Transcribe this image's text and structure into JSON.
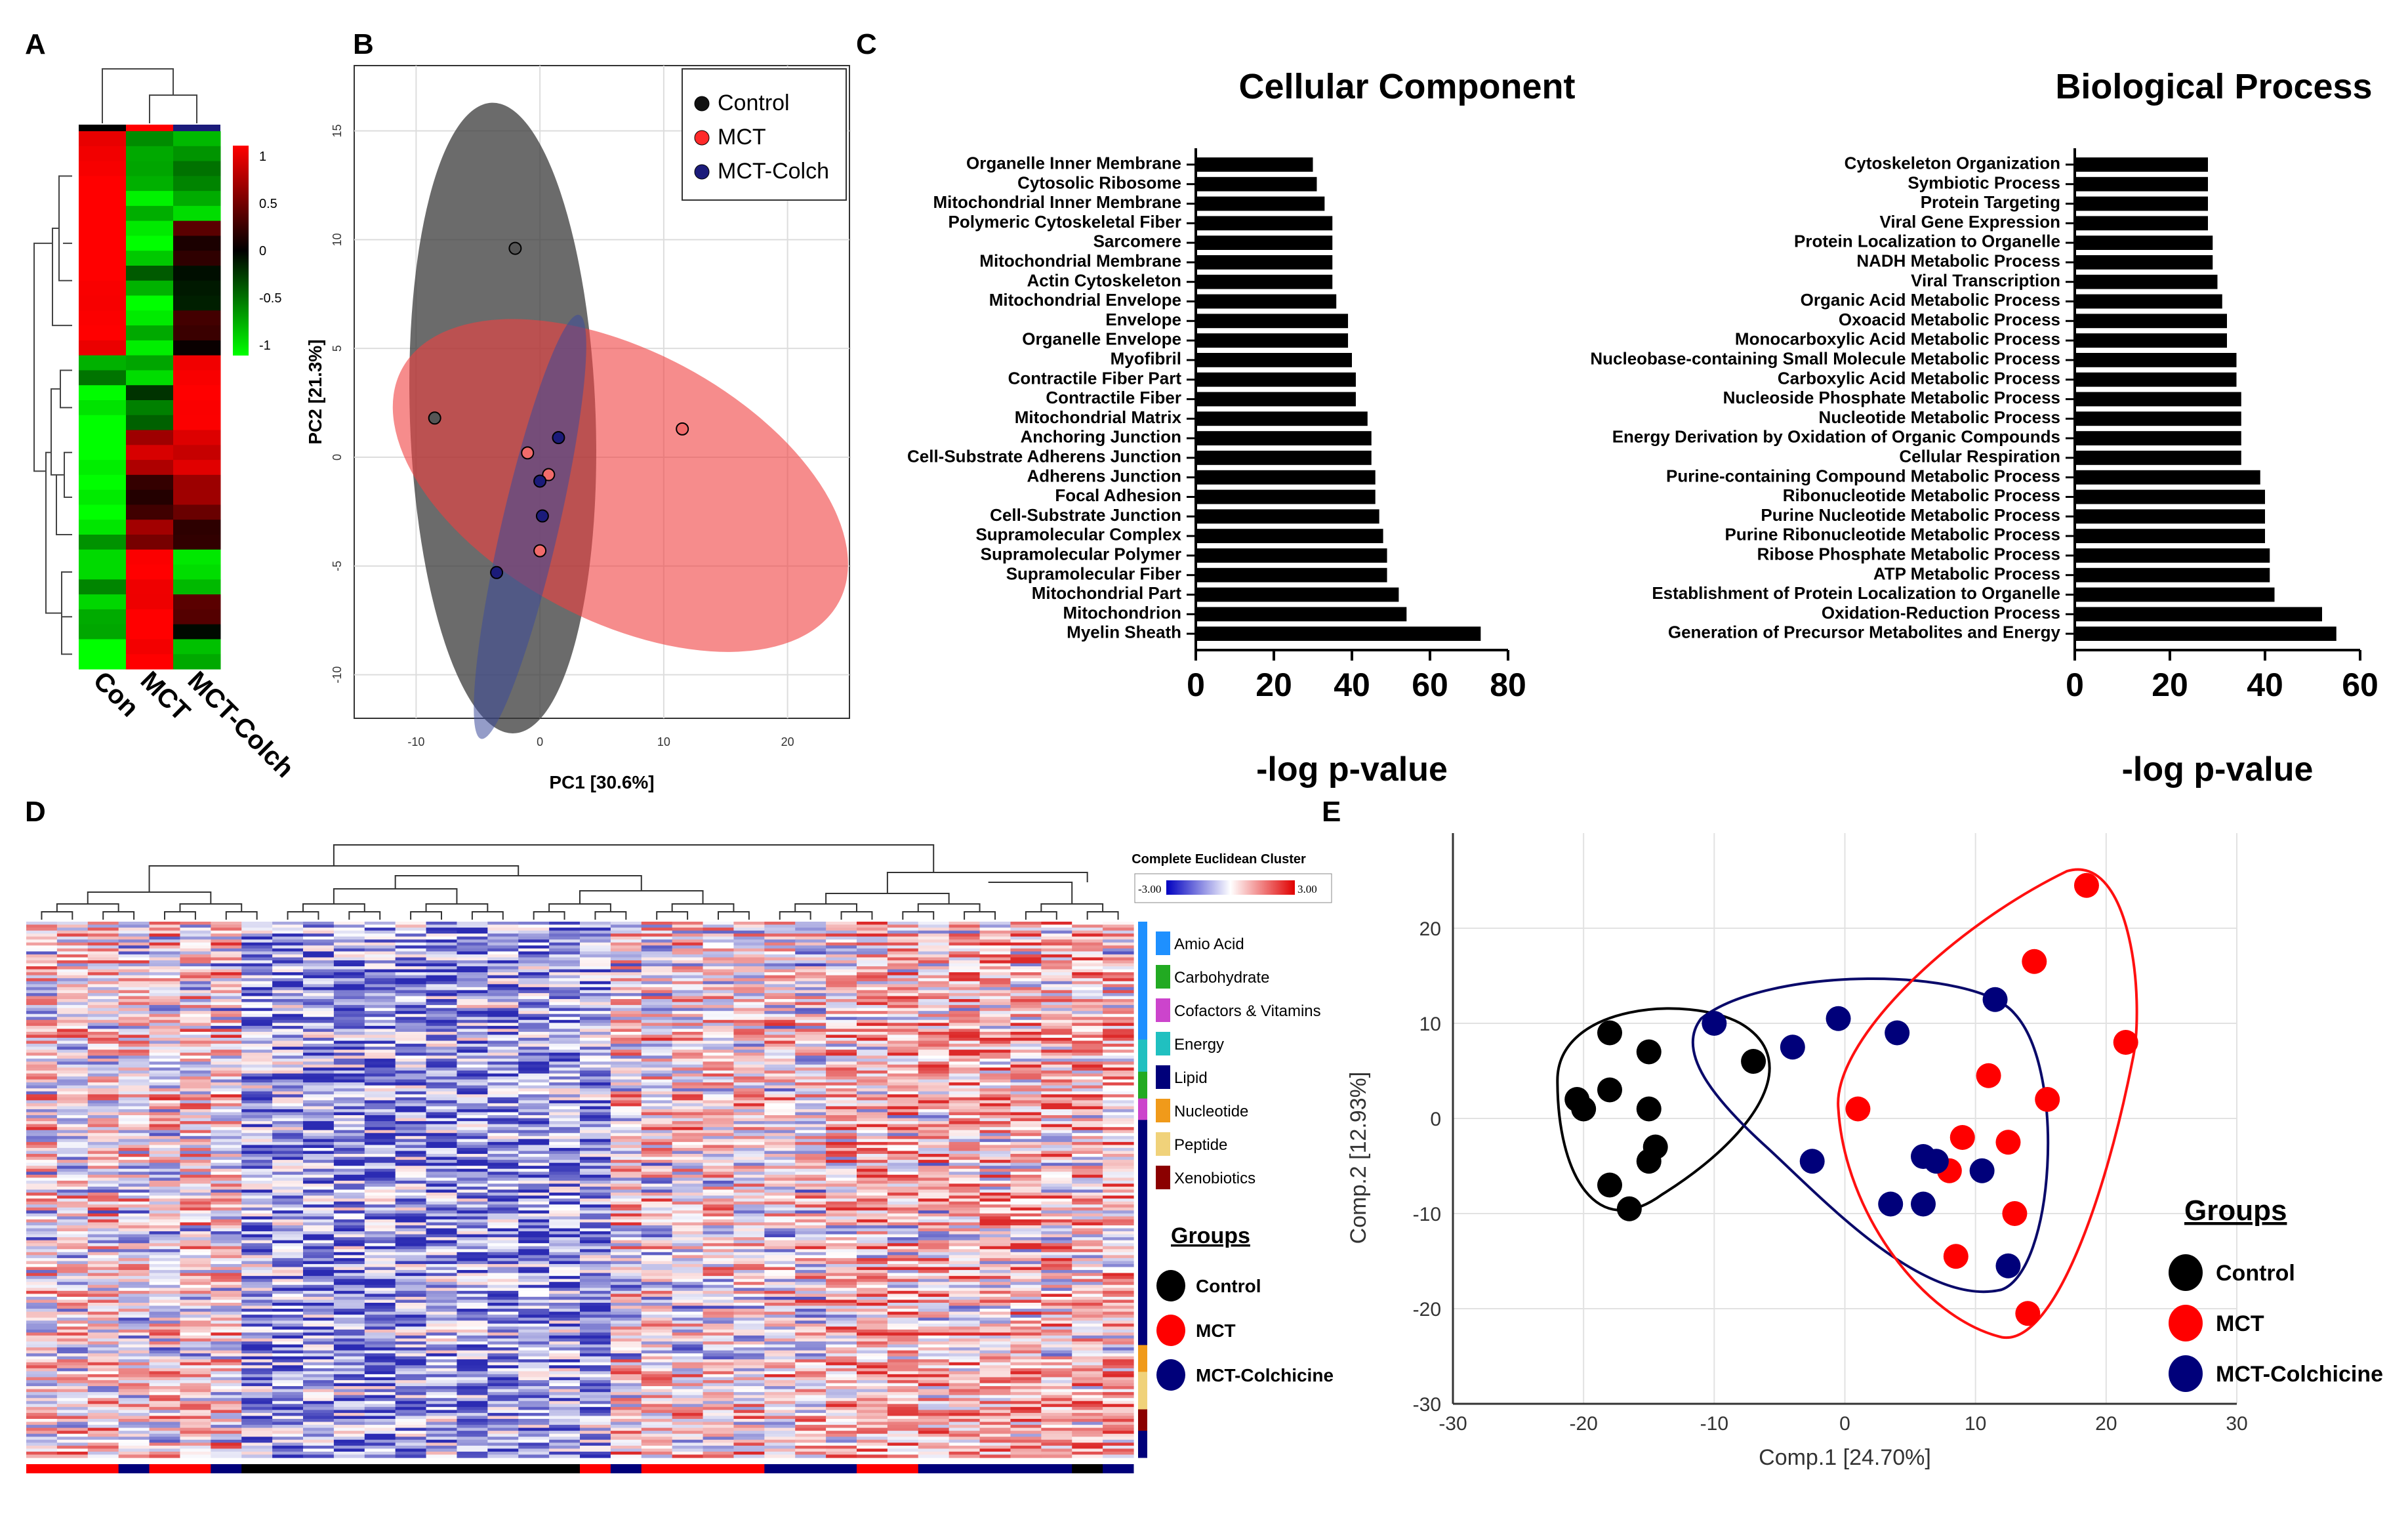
{
  "panel_labels": [
    "A",
    "B",
    "C",
    "D",
    "E"
  ],
  "colors": {
    "red": "#ff0000",
    "green": "#00ff00",
    "black": "#000000",
    "navy": "#1b1b7a",
    "control_fill": "#555555",
    "mct_fill": "#f26b6b",
    "heat_blue": "#2f2fb0",
    "heat_red": "#e03030"
  },
  "chart_data": [
    {
      "id": "A",
      "type": "heatmap",
      "columns": [
        "Con",
        "MCT",
        "MCT-Colch"
      ],
      "column_colors": [
        "#000000",
        "#ff0000",
        "#1b1b7a"
      ],
      "colorbar": {
        "ticks": [
          "1",
          "0.5",
          "0",
          "-0.5",
          "-1"
        ],
        "range": [
          -1,
          1
        ]
      },
      "blocks": [
        {
          "rows": 6,
          "values": [
            1,
            -0.8,
            -0.6
          ]
        },
        {
          "rows": 3,
          "values": [
            1,
            -0.9,
            0.1
          ]
        },
        {
          "rows": 2,
          "values": [
            1,
            -0.6,
            -0.3
          ]
        },
        {
          "rows": 4,
          "values": [
            1,
            -0.8,
            0.0
          ]
        },
        {
          "rows": 2,
          "values": [
            -0.7,
            -0.6,
            1
          ]
        },
        {
          "rows": 3,
          "values": [
            -0.9,
            -0.3,
            1
          ]
        },
        {
          "rows": 3,
          "values": [
            -1,
            0.6,
            0.8
          ]
        },
        {
          "rows": 3,
          "values": [
            -1,
            0.2,
            0.5
          ]
        },
        {
          "rows": 2,
          "values": [
            -0.8,
            0.7,
            0.0
          ]
        },
        {
          "rows": 3,
          "values": [
            -0.6,
            1,
            -0.7
          ]
        },
        {
          "rows": 3,
          "values": [
            -0.9,
            1,
            0.1
          ]
        },
        {
          "rows": 2,
          "values": [
            -1,
            1,
            -0.5
          ]
        }
      ]
    },
    {
      "id": "B",
      "type": "scatter",
      "xlabel": "PC1 [30.6%]",
      "ylabel": "PC2 [21.3%]",
      "xlim": [
        -15,
        25
      ],
      "ylim": [
        -12,
        18
      ],
      "xticks": [
        -10,
        0,
        10,
        20
      ],
      "yticks": [
        -10,
        -5,
        0,
        5,
        10,
        15
      ],
      "legend": [
        "Control",
        "MCT",
        "MCT-Colch"
      ],
      "series": [
        {
          "name": "Control",
          "color": "#555555",
          "x": [
            -2,
            -8.5
          ],
          "y": [
            9.6,
            1.8
          ]
        },
        {
          "name": "MCT",
          "color": "#f26b6b",
          "x": [
            11.5,
            -1,
            0.7,
            0
          ],
          "y": [
            1.3,
            0.2,
            -0.8,
            -4.3
          ]
        },
        {
          "name": "MCT-Colch",
          "color": "#1b1b7a",
          "x": [
            1.5,
            0,
            0.2,
            -3.5
          ],
          "y": [
            0.9,
            -1.1,
            -2.7,
            -5.3
          ]
        }
      ],
      "ellipses": [
        {
          "group": "Control",
          "cx": -3,
          "cy": 1.8,
          "rx": 7.5,
          "ry": 14.5,
          "angle_deg": -2
        },
        {
          "group": "MCT",
          "cx": 6.5,
          "cy": -1.3,
          "rx": 20,
          "ry": 6.2,
          "angle_deg": 28
        },
        {
          "group": "MCT-Colch",
          "cx": -0.8,
          "cy": -3.2,
          "rx": 2.3,
          "ry": 10,
          "angle_deg": 13
        }
      ]
    },
    {
      "id": "C1",
      "type": "bar",
      "orientation": "horizontal",
      "title": "Cellular  Component",
      "xlabel": "-log p-value",
      "xlim": [
        0,
        80
      ],
      "xticks": [
        "0",
        "20",
        "40",
        "60",
        "80"
      ],
      "categories": [
        "Organelle Inner Membrane",
        "Cytosolic Ribosome",
        "Mitochondrial Inner Membrane",
        "Polymeric Cytoskeletal Fiber",
        "Sarcomere",
        "Mitochondrial Membrane",
        "Actin Cytoskeleton",
        "Mitochondrial Envelope",
        "Envelope",
        "Organelle Envelope",
        "Myofibril",
        "Contractile Fiber Part",
        "Contractile Fiber",
        "Mitochondrial Matrix",
        "Anchoring Junction",
        "Cell-Substrate Adherens Junction",
        "Adherens Junction",
        "Focal Adhesion",
        "Cell-Substrate Junction",
        "Supramolecular Complex",
        "Supramolecular Polymer",
        "Supramolecular Fiber",
        "Mitochondrial Part",
        "Mitochondrion",
        "Myelin Sheath"
      ],
      "values": [
        30,
        31,
        33,
        35,
        35,
        35,
        35,
        36,
        39,
        39,
        40,
        41,
        41,
        44,
        45,
        45,
        46,
        46,
        47,
        48,
        49,
        49,
        52,
        54,
        73
      ]
    },
    {
      "id": "C2",
      "type": "bar",
      "orientation": "horizontal",
      "title": "Biological Process",
      "xlabel": "-log p-value",
      "xlim": [
        0,
        60
      ],
      "xticks": [
        "0",
        "20",
        "40",
        "60"
      ],
      "categories": [
        "Cytoskeleton Organization",
        "Symbiotic Process",
        "Protein Targeting",
        "Viral Gene Expression",
        "Protein Localization to Organelle",
        "NADH Metabolic Process",
        "Viral Transcription",
        "Organic Acid Metabolic Process",
        "Oxoacid Metabolic Process",
        "Monocarboxylic Acid Metabolic Process",
        "Nucleobase-containing Small Molecule Metabolic Process",
        "Carboxylic Acid Metabolic Process",
        "Nucleoside Phosphate Metabolic Process",
        "Nucleotide Metabolic Process",
        "Energy Derivation by Oxidation of Organic Compounds",
        "Cellular Respiration",
        "Purine-containing Compound Metabolic Process",
        "Ribonucleotide Metabolic Process",
        "Purine Nucleotide Metabolic Process",
        "Purine Ribonucleotide Metabolic Process",
        "Ribose Phosphate Metabolic Process",
        "ATP Metabolic Process",
        "Establishment of Protein Localization to Organelle",
        "Oxidation-Reduction Process",
        "Generation of Precursor Metabolites and Energy"
      ],
      "values": [
        28,
        28,
        28,
        28,
        29,
        29,
        30,
        31,
        32,
        32,
        34,
        34,
        35,
        35,
        35,
        35,
        39,
        40,
        40,
        40,
        41,
        41,
        42,
        52,
        55
      ]
    },
    {
      "id": "D",
      "type": "heatmap",
      "colorbar_title": "Complete Euclidean Cluster",
      "colorbar_ticks": [
        "-3.00",
        "3.00"
      ],
      "columns": 36,
      "rows": 180,
      "categories": [
        "Amio Acid",
        "Carbohydrate",
        "Cofactors & Vitamins",
        "Energy",
        "Lipid",
        "Nucleotide",
        "Peptide",
        "Xenobiotics"
      ],
      "category_colors": [
        "#1e90ff",
        "#22aa22",
        "#cc44cc",
        "#20c0c0",
        "#00007a",
        "#f09a1a",
        "#f0d27a",
        "#8b0000"
      ],
      "groups_title": "Groups",
      "groups": [
        "Control",
        "MCT",
        "MCT-Colchicine"
      ],
      "group_colors": [
        "#000000",
        "#ff0000",
        "#00007a"
      ]
    },
    {
      "id": "E",
      "type": "scatter",
      "xlabel": "Comp.1 [24.70%]",
      "ylabel": "Comp.2 [12.93%]",
      "xlim": [
        -30,
        30
      ],
      "ylim": [
        -30,
        30
      ],
      "xticks": [
        -30,
        -20,
        -10,
        0,
        10,
        20,
        30
      ],
      "yticks": [
        -30,
        -20,
        -10,
        0,
        10,
        20
      ],
      "legend_title": "Groups",
      "legend": [
        "Control",
        "MCT",
        "MCT-Colchicine"
      ],
      "series": [
        {
          "name": "Control",
          "color": "#000000",
          "x": [
            -18,
            -15,
            -7,
            -18,
            -20.5,
            -20,
            -15,
            -14.5,
            -15,
            -18,
            -16.5
          ],
          "y": [
            9,
            7,
            6,
            3,
            2,
            1,
            1,
            -3,
            -4.5,
            -7,
            -9.5
          ]
        },
        {
          "name": "MCT",
          "color": "#ff0000",
          "x": [
            18.5,
            14.5,
            21.5,
            11,
            15.5,
            1,
            9,
            12.5,
            8,
            13,
            8.5,
            14
          ],
          "y": [
            24.5,
            16.5,
            8,
            4.5,
            2,
            1,
            -2,
            -2.5,
            -5.5,
            -10,
            -14.5,
            -20.5
          ]
        },
        {
          "name": "MCT-Colchicine",
          "color": "#00007a",
          "x": [
            11.5,
            -0.5,
            4,
            -10,
            -4,
            -2.5,
            6,
            7,
            10.5,
            3.5,
            6,
            12.5
          ],
          "y": [
            12.5,
            10.5,
            9,
            10,
            7.5,
            -4.5,
            -4,
            -4.5,
            -5.5,
            -9,
            -9,
            -15.5
          ]
        }
      ]
    }
  ]
}
